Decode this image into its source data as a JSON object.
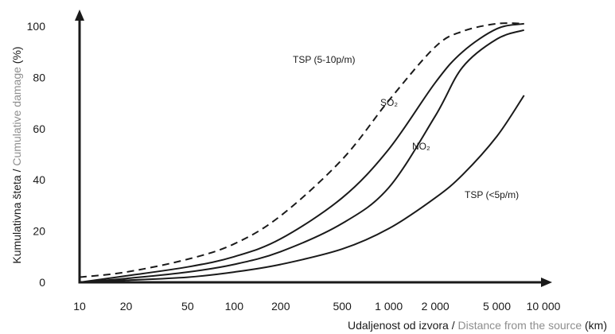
{
  "chart_data": {
    "type": "line",
    "x_scale": "log",
    "xlim": [
      10,
      10000
    ],
    "ylim": [
      0,
      100
    ],
    "x_ticks": [
      10,
      20,
      50,
      100,
      200,
      500,
      1000,
      2000,
      5000,
      10000
    ],
    "x_tick_labels": [
      "10",
      "20",
      "50",
      "100",
      "200",
      "500",
      "1 000",
      "2 000",
      "5 000",
      "10 000"
    ],
    "y_ticks": [
      0,
      20,
      40,
      60,
      80,
      100
    ],
    "y_tick_labels": [
      "0",
      "20",
      "40",
      "60",
      "80",
      "100"
    ],
    "xlabel": {
      "local": "Udaljenost od izvora / ",
      "english": "Distance from the source",
      "unit": " (km)"
    },
    "ylabel": {
      "local": "Kumulativna šteta / ",
      "english": "Cumulative damage",
      "unit": " (%)"
    },
    "grid": false,
    "series": [
      {
        "name": "TSP (5-10p/m)",
        "style": "dashed",
        "color": "#1a1a1a",
        "x": [
          10,
          20,
          50,
          100,
          200,
          500,
          1000,
          2000,
          3000,
          5000,
          7500
        ],
        "y": [
          2,
          4,
          9,
          15,
          26,
          48,
          71,
          92,
          98,
          101,
          101
        ]
      },
      {
        "name": "SO₂",
        "style": "solid",
        "color": "#1a1a1a",
        "x": [
          10,
          20,
          50,
          100,
          200,
          500,
          1000,
          2000,
          3000,
          5000,
          7500
        ],
        "y": [
          0,
          2.5,
          6,
          10,
          17,
          33,
          52,
          78,
          90,
          99,
          101
        ]
      },
      {
        "name": "NO₂",
        "style": "solid",
        "color": "#1a1a1a",
        "x": [
          10,
          20,
          50,
          100,
          200,
          500,
          1000,
          2000,
          3000,
          5000,
          7500
        ],
        "y": [
          0,
          1.5,
          4,
          7,
          12,
          23,
          37,
          65,
          84,
          95,
          98.5
        ]
      },
      {
        "name": "TSP (<5p/m)",
        "style": "solid",
        "color": "#1a1a1a",
        "x": [
          10,
          20,
          50,
          100,
          200,
          500,
          1000,
          2000,
          3000,
          5000,
          7500
        ],
        "y": [
          0,
          0.8,
          2,
          4,
          7,
          13,
          21,
          33,
          42,
          57,
          73
        ]
      }
    ]
  }
}
